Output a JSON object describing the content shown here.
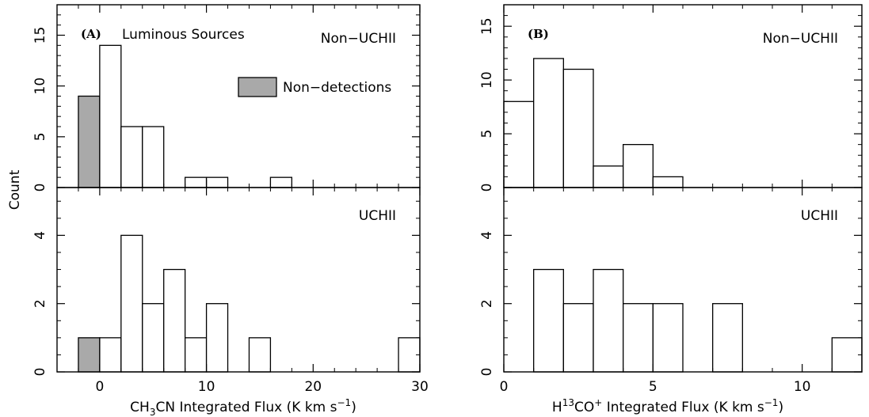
{
  "chart_data": [
    {
      "type": "bar",
      "panel": "A",
      "panel_label": "(A)",
      "shared_ylabel": "Count",
      "xlabel": {
        "pre": "CH",
        "sub": "3",
        "post": "CN Integrated Flux (K km s",
        "sup": "−1",
        "end": ")"
      },
      "xlim": [
        -4,
        30
      ],
      "x_ticks": [
        0,
        10,
        20,
        30
      ],
      "x_tick_labels": [
        "0",
        "10",
        "20",
        "30"
      ],
      "bin_width": 2,
      "subpanels": [
        {
          "label": "Non−UCHII",
          "title": "Luminous Sources",
          "ylim": [
            0,
            18
          ],
          "y_ticks": [
            0,
            5,
            10,
            15
          ],
          "y_tick_labels": [
            "0",
            "5",
            "10",
            "15"
          ],
          "bins": [
            {
              "x0": -2,
              "value": 9,
              "nondetection": true
            },
            {
              "x0": 0,
              "value": 14
            },
            {
              "x0": 2,
              "value": 6
            },
            {
              "x0": 4,
              "value": 6
            },
            {
              "x0": 8,
              "value": 1
            },
            {
              "x0": 10,
              "value": 1
            },
            {
              "x0": 16,
              "value": 1
            }
          ],
          "legend": {
            "label": "Non−detections",
            "color": "#a9a9a9"
          }
        },
        {
          "label": "UCHII",
          "ylim": [
            0,
            5.4
          ],
          "y_ticks": [
            0,
            2,
            4
          ],
          "y_tick_labels": [
            "0",
            "2",
            "4"
          ],
          "bins": [
            {
              "x0": -2,
              "value": 1,
              "nondetection": true
            },
            {
              "x0": 0,
              "value": 1
            },
            {
              "x0": 2,
              "value": 4
            },
            {
              "x0": 4,
              "value": 2
            },
            {
              "x0": 6,
              "value": 3
            },
            {
              "x0": 8,
              "value": 1
            },
            {
              "x0": 10,
              "value": 2
            },
            {
              "x0": 14,
              "value": 1
            },
            {
              "x0": 28,
              "value": 1
            }
          ]
        }
      ]
    },
    {
      "type": "bar",
      "panel": "B",
      "panel_label": "(B)",
      "xlabel": {
        "pre": "H",
        "sup1": "13",
        "mid": "CO",
        "sup2": "+",
        "post": " Integrated Flux (K km s",
        "sup3": "−1",
        "end": ")"
      },
      "xlim": [
        0,
        12
      ],
      "x_ticks": [
        0,
        5,
        10
      ],
      "x_tick_labels": [
        "0",
        "5",
        "10"
      ],
      "bin_width": 1,
      "subpanels": [
        {
          "label": "Non−UCHII",
          "ylim": [
            0,
            17
          ],
          "y_ticks": [
            0,
            5,
            10,
            15
          ],
          "y_tick_labels": [
            "0",
            "5",
            "10",
            "15"
          ],
          "bins": [
            {
              "x0": 0,
              "value": 8
            },
            {
              "x0": 1,
              "value": 12
            },
            {
              "x0": 2,
              "value": 11
            },
            {
              "x0": 3,
              "value": 2
            },
            {
              "x0": 4,
              "value": 4
            },
            {
              "x0": 5,
              "value": 1
            }
          ]
        },
        {
          "label": "UCHII",
          "ylim": [
            0,
            5.4
          ],
          "y_ticks": [
            0,
            2,
            4
          ],
          "y_tick_labels": [
            "0",
            "2",
            "4"
          ],
          "bins": [
            {
              "x0": 1,
              "value": 3
            },
            {
              "x0": 2,
              "value": 2
            },
            {
              "x0": 3,
              "value": 3
            },
            {
              "x0": 4,
              "value": 2
            },
            {
              "x0": 5,
              "value": 2
            },
            {
              "x0": 7,
              "value": 2
            },
            {
              "x0": 11,
              "value": 1
            }
          ]
        }
      ]
    }
  ],
  "colors": {
    "nondetection_fill": "#a9a9a9",
    "bar_fill": "#ffffff",
    "axis": "#000000"
  }
}
